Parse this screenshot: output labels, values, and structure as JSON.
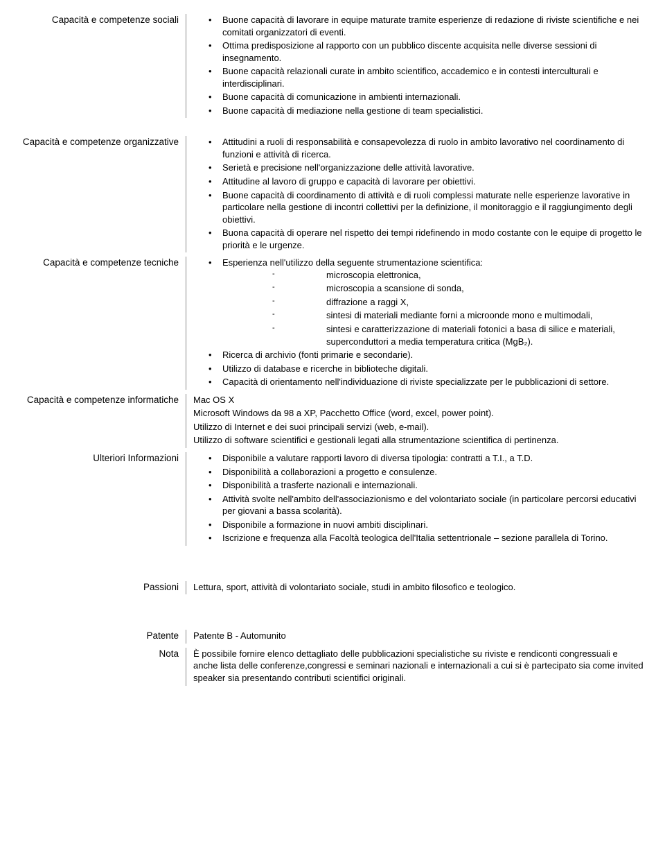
{
  "sections": {
    "sociali": {
      "label": "Capacità e competenze sociali",
      "items": [
        "Buone capacità di lavorare in equipe maturate tramite esperienze di redazione di riviste scientifiche e nei comitati organizzatori di eventi.",
        "Ottima predisposizione al rapporto con un pubblico discente acquisita nelle diverse sessioni di insegnamento.",
        "Buone capacità relazionali curate in ambito scientifico, accademico e in contesti interculturali e interdisciplinari.",
        "Buone capacità di comunicazione in ambienti internazionali.",
        "Buone capacità di mediazione nella gestione di team specialistici."
      ]
    },
    "organizzative": {
      "label": "Capacità e competenze organizzative",
      "items": [
        "Attitudini a ruoli di responsabilità e consapevolezza di ruolo in ambito lavorativo nel coordinamento di funzioni e attività di ricerca.",
        "Serietà e precisione nell'organizzazione delle attività lavorative.",
        "Attitudine al lavoro di gruppo e capacità di lavorare per obiettivi.",
        "Buone capacità di coordinamento di attività e di ruoli complessi maturate nelle esperienze lavorative  in particolare nella gestione di incontri collettivi per la definizione, il  monitoraggio e il raggiungimento degli obiettivi.",
        "Buona capacità di operare nel rispetto dei tempi ridefinendo in modo costante con le equipe di progetto le priorità e le urgenze."
      ]
    },
    "tecniche": {
      "label": "Capacità e competenze tecniche",
      "item0": "Esperienza nell'utilizzo della seguente strumentazione scientifica:",
      "subitems": [
        "microscopia elettronica,",
        "microscopia a scansione di sonda,",
        "diffrazione a raggi X,",
        "sintesi di materiali mediante forni a microonde mono e multimodali,",
        "sintesi e caratterizzazione di materiali fotonici a basa di silice e materiali, superconduttori a media temperatura critica (MgB₂)."
      ],
      "items_rest": [
        "Ricerca di archivio (fonti primarie e secondarie).",
        "Utilizzo di database e ricerche in biblioteche digitali.",
        "Capacità di orientamento nell'individuazione di riviste specializzate per le pubblicazioni di settore."
      ]
    },
    "informatiche": {
      "label": "Capacità e competenze informatiche",
      "lines": [
        "Mac OS X",
        "Microsoft Windows da 98 a XP, Pacchetto Office (word, excel, power point).",
        "Utilizzo di Internet e dei suoi principali servizi (web, e-mail).",
        "Utilizzo di software scientifici e gestionali legati alla strumentazione scientifica di pertinenza."
      ]
    },
    "ulteriori": {
      "label": "Ulteriori Informazioni",
      "items": [
        "Disponibile a valutare rapporti lavoro di diversa tipologia: contratti a T.I., a T.D.",
        "Disponibilità a collaborazioni a progetto e consulenze.",
        "Disponibilità a trasferte nazionali e internazionali.",
        "Attività svolte nell'ambito dell'associazionismo e del volontariato sociale (in particolare percorsi educativi per giovani a bassa scolarità).",
        "Disponibile a formazione in nuovi ambiti disciplinari.",
        "Iscrizione e frequenza alla Facoltà teologica dell'Italia settentrionale – sezione parallela di Torino."
      ]
    },
    "passioni": {
      "label": "Passioni",
      "text": "Lettura, sport, attività di volontariato sociale, studi in ambito filosofico e teologico."
    },
    "patente": {
      "label": "Patente",
      "text": "Patente B - Automunito"
    },
    "nota": {
      "label": "Nota",
      "text": "È possibile fornire elenco dettagliato delle pubblicazioni specialistiche su riviste e rendiconti congressuali e anche lista delle conferenze,congressi e seminari nazionali e internazionali a cui si è partecipato sia come invited speaker sia presentando contributi scientifici originali."
    }
  }
}
